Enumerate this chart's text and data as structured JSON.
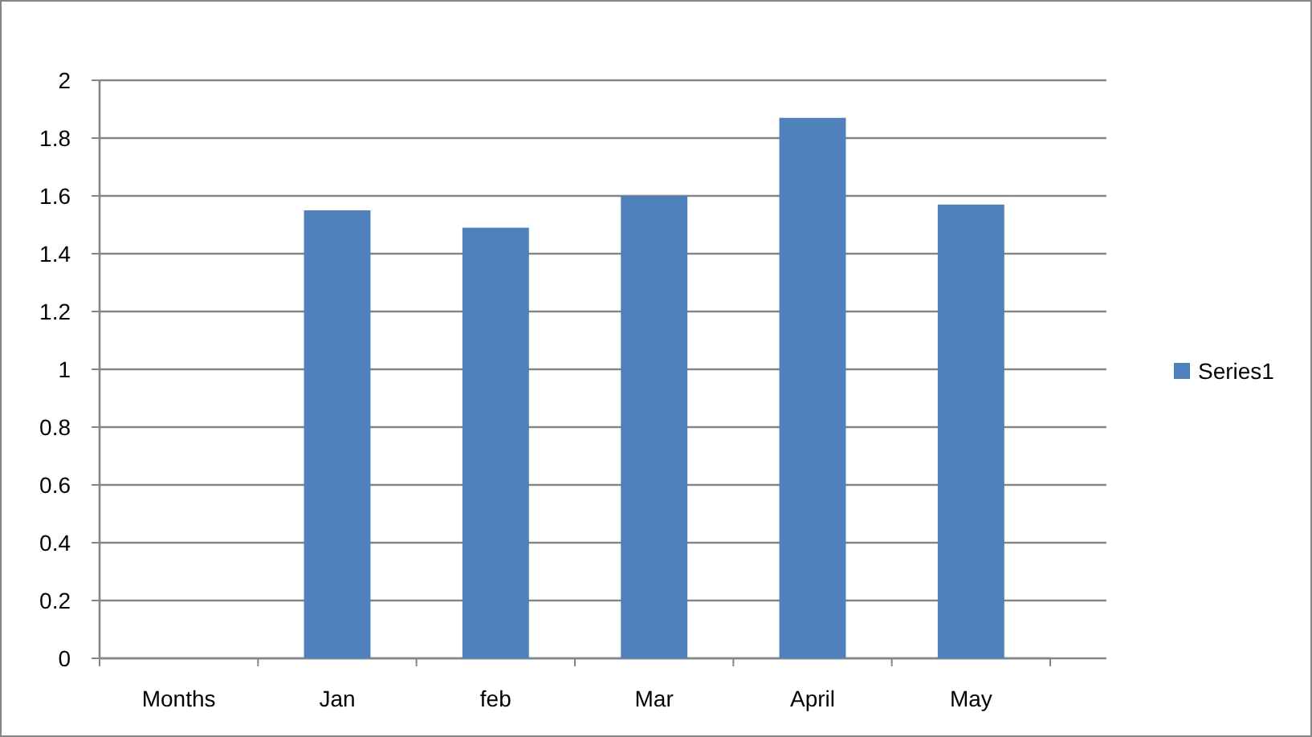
{
  "chart_data": {
    "type": "bar",
    "categories": [
      "Months",
      "Jan",
      "feb",
      "Mar",
      "April",
      "May"
    ],
    "series": [
      {
        "name": "Series1",
        "color": "#4f81bd",
        "values": [
          null,
          1.55,
          1.49,
          1.6,
          1.87,
          1.57
        ]
      }
    ],
    "ylim": [
      0,
      2
    ],
    "yticks": [
      0,
      0.2,
      0.4,
      0.6,
      0.8,
      1,
      1.2,
      1.4,
      1.6,
      1.8,
      2
    ],
    "grid": "y",
    "legend": "right"
  }
}
